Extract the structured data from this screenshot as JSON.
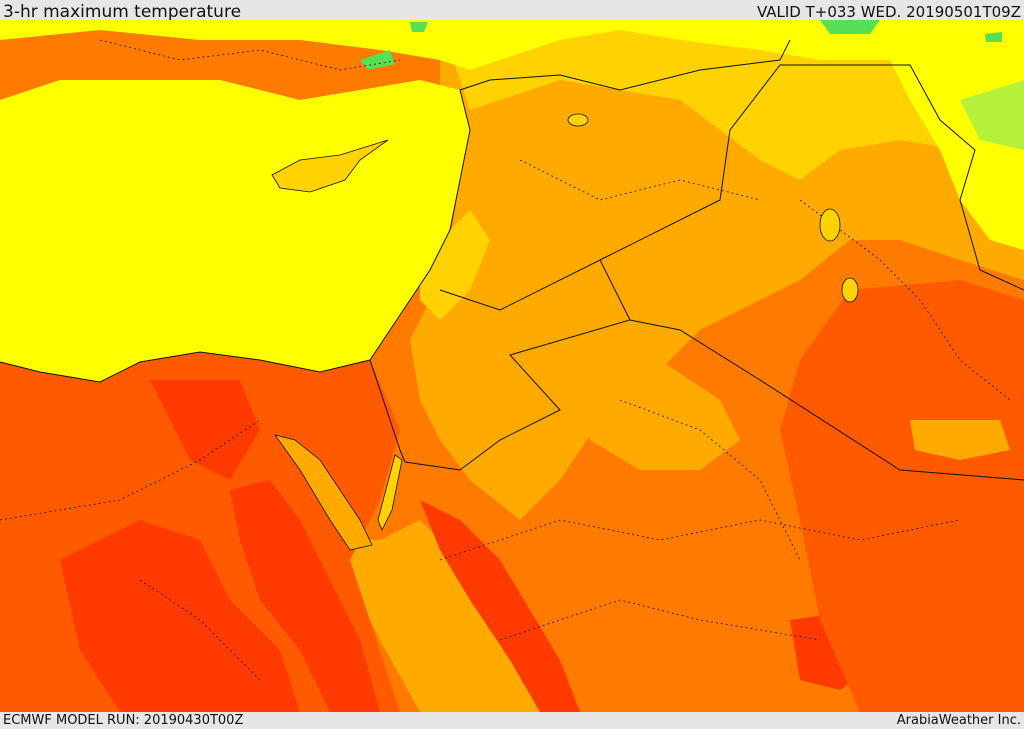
{
  "header": {
    "title": "3-hr maximum temperature",
    "valid": "VALID T+033 WED. 20190501T09Z"
  },
  "footer": {
    "model_run": "ECMWF MODEL RUN: 20190430T00Z",
    "credit": "ArabiaWeather Inc."
  },
  "palette": {
    "green": "#55e055",
    "light_green": "#b5f03a",
    "yellow": "#ffff00",
    "light_orange": "#ffd200",
    "orange": "#ffaa00",
    "dark_orange": "#ff7b00",
    "red_orange": "#ff5a00",
    "red": "#ff3a00"
  }
}
